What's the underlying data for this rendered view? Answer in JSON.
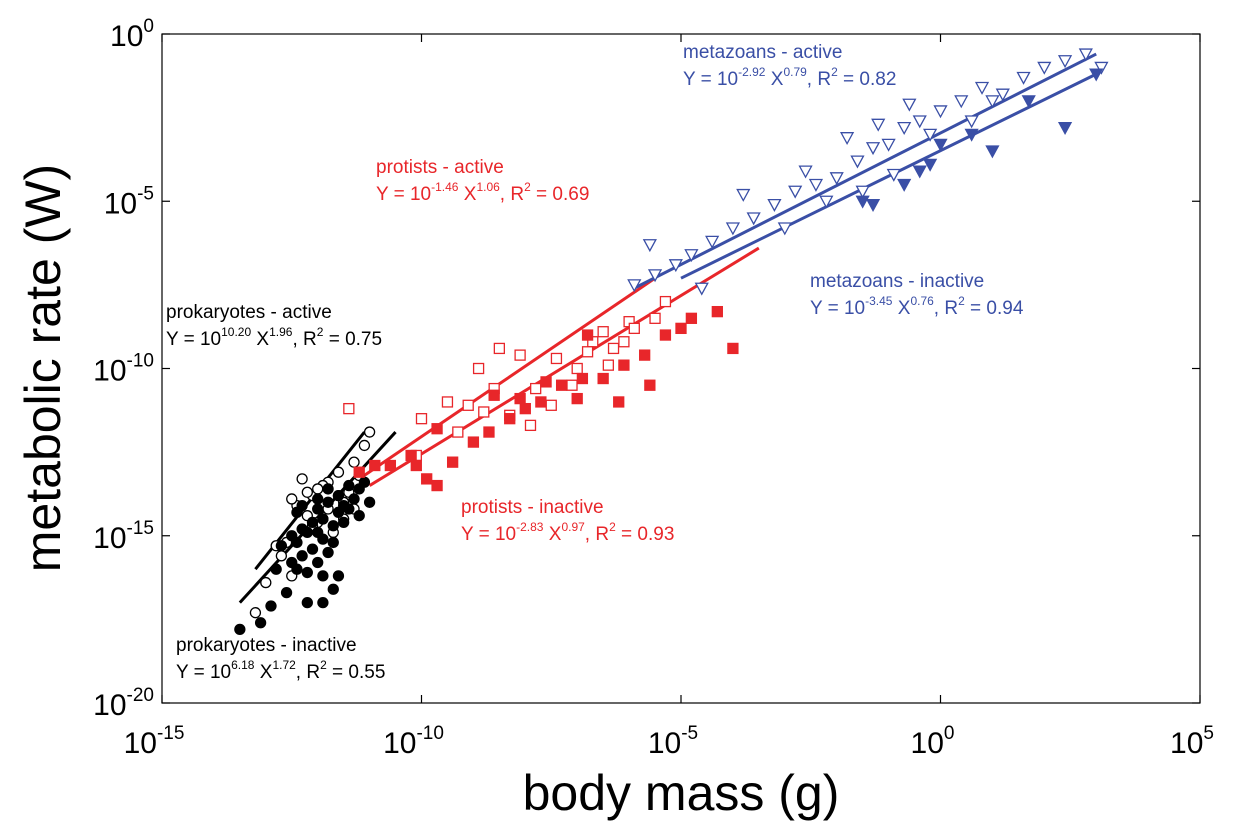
{
  "chart_data": {
    "type": "scatter",
    "title": "",
    "xlabel": "body mass (g)",
    "ylabel": "metabolic rate (W)",
    "x_scale": "log",
    "y_scale": "log",
    "x_exp_range": [
      -15,
      5
    ],
    "y_exp_range": [
      -20,
      0
    ],
    "x_tick_exponents": [
      "-15",
      "-10",
      "-5",
      "0",
      "5"
    ],
    "y_tick_exponents": [
      "0",
      "-5",
      "-10",
      "-15",
      "-20"
    ],
    "tick_base": "10",
    "grid": false,
    "colors": {
      "prokaryotes": "#000000",
      "protists": "#e8262a",
      "metazoans": "#3a4fa6"
    },
    "annotations": [
      {
        "id": "metazoans-active",
        "group": "metazoans",
        "label": "metazoans - active",
        "eq_y": "Y = 10",
        "coef_exp": "-2.92",
        "eq_x": " X",
        "slope_exp": "0.79",
        "eq_r": ", R",
        "r_exp": "2",
        "eq_rval": " = 0.82"
      },
      {
        "id": "metazoans-inactive",
        "group": "metazoans",
        "label": "metazoans - inactive",
        "eq_y": "Y = 10",
        "coef_exp": "-3.45",
        "eq_x": " X",
        "slope_exp": "0.76",
        "eq_r": ", R",
        "r_exp": "2",
        "eq_rval": " = 0.94"
      },
      {
        "id": "protists-active",
        "group": "protists",
        "label": "protists - active",
        "eq_y": "Y = 10",
        "coef_exp": "-1.46",
        "eq_x": " X",
        "slope_exp": "1.06",
        "eq_r": ", R",
        "r_exp": "2",
        "eq_rval": " = 0.69"
      },
      {
        "id": "protists-inactive",
        "group": "protists",
        "label": "protists - inactive",
        "eq_y": "Y = 10",
        "coef_exp": "-2.83",
        "eq_x": " X",
        "slope_exp": "0.97",
        "eq_r": ", R",
        "r_exp": "2",
        "eq_rval": " = 0.93"
      },
      {
        "id": "prokaryotes-active",
        "group": "prokaryotes",
        "label": "prokaryotes - active",
        "eq_y": "Y = 10",
        "coef_exp": "10.20",
        "eq_x": " X",
        "slope_exp": "1.96",
        "eq_r": ", R",
        "r_exp": "2",
        "eq_rval": " = 0.75"
      },
      {
        "id": "prokaryotes-inactive",
        "group": "prokaryotes",
        "label": "prokaryotes - inactive",
        "eq_y": "Y = 10",
        "coef_exp": "6.18",
        "eq_x": " X",
        "slope_exp": "1.72",
        "eq_r": ", R",
        "r_exp": "2",
        "eq_rval": " = 0.55"
      }
    ],
    "fit_lines": [
      {
        "group": "prokaryotes",
        "state": "active",
        "log_x": [
          -13.2,
          -11.1
        ],
        "log_y": [
          -16.0,
          -11.9
        ]
      },
      {
        "group": "prokaryotes",
        "state": "inactive",
        "log_x": [
          -13.5,
          -10.5
        ],
        "log_y": [
          -17.0,
          -11.9
        ]
      },
      {
        "group": "protists",
        "state": "active",
        "log_x": [
          -11.2,
          -5.5
        ],
        "log_y": [
          -13.3,
          -7.3
        ]
      },
      {
        "group": "protists",
        "state": "inactive",
        "log_x": [
          -11.0,
          -3.5
        ],
        "log_y": [
          -13.5,
          -6.4
        ]
      },
      {
        "group": "metazoans",
        "state": "active",
        "log_x": [
          -5.9,
          3.0
        ],
        "log_y": [
          -7.6,
          -0.6
        ]
      },
      {
        "group": "metazoans",
        "state": "inactive",
        "log_x": [
          -5.0,
          3.0
        ],
        "log_y": [
          -7.3,
          -1.2
        ]
      }
    ],
    "series": [
      {
        "group": "prokaryotes",
        "state": "active",
        "marker": "circle",
        "filled": false,
        "points": [
          [
            -12.0,
            -14.6
          ],
          [
            -11.8,
            -14.2
          ],
          [
            -11.7,
            -14.9
          ],
          [
            -11.6,
            -13.8
          ],
          [
            -11.5,
            -14.5
          ],
          [
            -11.5,
            -14.0
          ],
          [
            -11.4,
            -13.7
          ],
          [
            -11.3,
            -14.2
          ],
          [
            -11.2,
            -13.2
          ],
          [
            -11.3,
            -12.8
          ],
          [
            -11.1,
            -12.3
          ],
          [
            -11.0,
            -11.9
          ],
          [
            -11.8,
            -13.4
          ],
          [
            -11.9,
            -13.5
          ],
          [
            -12.1,
            -13.8
          ],
          [
            -12.2,
            -14.4
          ],
          [
            -12.4,
            -14.1
          ],
          [
            -12.6,
            -15.2
          ],
          [
            -12.7,
            -15.6
          ],
          [
            -12.8,
            -15.3
          ],
          [
            -13.0,
            -16.4
          ],
          [
            -13.2,
            -17.3
          ],
          [
            -12.3,
            -13.3
          ],
          [
            -12.5,
            -13.9
          ],
          [
            -12.0,
            -13.6
          ],
          [
            -11.6,
            -13.1
          ],
          [
            -12.2,
            -13.7
          ],
          [
            -11.9,
            -14.5
          ],
          [
            -12.5,
            -16.2
          ],
          [
            -12.1,
            -14.7
          ]
        ]
      },
      {
        "group": "prokaryotes",
        "state": "inactive",
        "marker": "circle",
        "filled": true,
        "points": [
          [
            -13.5,
            -17.8
          ],
          [
            -13.1,
            -17.6
          ],
          [
            -12.9,
            -17.1
          ],
          [
            -12.8,
            -16.0
          ],
          [
            -12.6,
            -16.7
          ],
          [
            -12.7,
            -15.3
          ],
          [
            -12.5,
            -15.8
          ],
          [
            -12.4,
            -15.2
          ],
          [
            -12.4,
            -14.3
          ],
          [
            -12.3,
            -15.6
          ],
          [
            -12.3,
            -14.8
          ],
          [
            -12.2,
            -16.1
          ],
          [
            -12.2,
            -14.9
          ],
          [
            -12.1,
            -15.4
          ],
          [
            -12.1,
            -14.6
          ],
          [
            -12.0,
            -15.8
          ],
          [
            -12.0,
            -14.9
          ],
          [
            -12.0,
            -14.2
          ],
          [
            -11.9,
            -15.1
          ],
          [
            -11.9,
            -14.5
          ],
          [
            -11.8,
            -15.5
          ],
          [
            -11.8,
            -14.0
          ],
          [
            -11.7,
            -14.7
          ],
          [
            -11.7,
            -15.2
          ],
          [
            -11.6,
            -14.3
          ],
          [
            -11.6,
            -13.8
          ],
          [
            -11.5,
            -14.6
          ],
          [
            -11.5,
            -14.1
          ],
          [
            -11.4,
            -13.5
          ],
          [
            -11.4,
            -14.2
          ],
          [
            -11.3,
            -13.9
          ],
          [
            -11.2,
            -14.4
          ],
          [
            -11.2,
            -13.6
          ],
          [
            -11.1,
            -13.4
          ],
          [
            -11.0,
            -14.0
          ],
          [
            -11.6,
            -16.2
          ],
          [
            -11.9,
            -17.0
          ],
          [
            -12.2,
            -17.0
          ],
          [
            -11.7,
            -16.6
          ],
          [
            -12.5,
            -15.0
          ],
          [
            -12.0,
            -13.9
          ],
          [
            -11.8,
            -13.6
          ],
          [
            -12.3,
            -14.1
          ],
          [
            -11.9,
            -16.2
          ],
          [
            -12.4,
            -16.0
          ]
        ]
      },
      {
        "group": "protists",
        "state": "active",
        "marker": "square",
        "filled": false,
        "points": [
          [
            -11.4,
            -11.2
          ],
          [
            -10.0,
            -11.5
          ],
          [
            -9.5,
            -11.0
          ],
          [
            -9.1,
            -11.1
          ],
          [
            -8.6,
            -10.6
          ],
          [
            -8.3,
            -11.4
          ],
          [
            -8.1,
            -9.6
          ],
          [
            -7.8,
            -10.6
          ],
          [
            -7.4,
            -9.7
          ],
          [
            -7.0,
            -10.0
          ],
          [
            -6.7,
            -9.2
          ],
          [
            -6.4,
            -9.9
          ],
          [
            -6.0,
            -8.6
          ],
          [
            -5.5,
            -8.5
          ],
          [
            -6.5,
            -8.9
          ],
          [
            -8.5,
            -9.4
          ],
          [
            -8.9,
            -10.0
          ],
          [
            -7.1,
            -10.5
          ],
          [
            -5.9,
            -8.8
          ],
          [
            -6.8,
            -9.5
          ],
          [
            -5.3,
            -8.0
          ],
          [
            -7.9,
            -11.7
          ],
          [
            -6.3,
            -9.4
          ],
          [
            -9.3,
            -11.9
          ],
          [
            -7.5,
            -11.1
          ],
          [
            -10.1,
            -12.6
          ],
          [
            -6.1,
            -9.2
          ],
          [
            -8.8,
            -11.3
          ]
        ]
      },
      {
        "group": "protists",
        "state": "inactive",
        "marker": "square",
        "filled": true,
        "points": [
          [
            -11.2,
            -13.1
          ],
          [
            -10.9,
            -12.9
          ],
          [
            -10.6,
            -12.9
          ],
          [
            -10.2,
            -12.6
          ],
          [
            -10.1,
            -12.9
          ],
          [
            -9.7,
            -13.5
          ],
          [
            -9.4,
            -12.8
          ],
          [
            -9.0,
            -12.2
          ],
          [
            -8.7,
            -11.9
          ],
          [
            -8.3,
            -11.5
          ],
          [
            -8.0,
            -11.2
          ],
          [
            -7.7,
            -11.0
          ],
          [
            -7.3,
            -10.5
          ],
          [
            -6.9,
            -10.3
          ],
          [
            -6.5,
            -10.3
          ],
          [
            -6.1,
            -9.9
          ],
          [
            -5.7,
            -9.6
          ],
          [
            -5.3,
            -9.0
          ],
          [
            -4.8,
            -8.5
          ],
          [
            -4.0,
            -9.4
          ],
          [
            -4.3,
            -8.3
          ],
          [
            -5.0,
            -8.8
          ],
          [
            -6.8,
            -9.0
          ],
          [
            -7.0,
            -10.9
          ],
          [
            -5.6,
            -10.5
          ],
          [
            -9.9,
            -13.3
          ],
          [
            -8.6,
            -10.8
          ],
          [
            -7.6,
            -10.4
          ],
          [
            -6.2,
            -11.0
          ],
          [
            -9.7,
            -11.8
          ],
          [
            -8.1,
            -10.9
          ]
        ]
      },
      {
        "group": "metazoans",
        "state": "active",
        "marker": "triangle-down",
        "filled": false,
        "points": [
          [
            -5.9,
            -7.5
          ],
          [
            -5.5,
            -7.2
          ],
          [
            -5.1,
            -6.9
          ],
          [
            -4.8,
            -6.6
          ],
          [
            -4.4,
            -6.2
          ],
          [
            -4.0,
            -5.8
          ],
          [
            -3.6,
            -5.5
          ],
          [
            -3.2,
            -5.1
          ],
          [
            -2.8,
            -4.7
          ],
          [
            -2.4,
            -4.5
          ],
          [
            -2.0,
            -4.3
          ],
          [
            -1.6,
            -3.8
          ],
          [
            -1.3,
            -3.4
          ],
          [
            -1.0,
            -3.3
          ],
          [
            -0.7,
            -2.8
          ],
          [
            -0.4,
            -2.6
          ],
          [
            0.0,
            -2.3
          ],
          [
            0.4,
            -2.0
          ],
          [
            0.8,
            -1.6
          ],
          [
            1.2,
            -1.8
          ],
          [
            1.6,
            -1.3
          ],
          [
            2.0,
            -1.0
          ],
          [
            2.4,
            -0.8
          ],
          [
            2.8,
            -0.6
          ],
          [
            3.1,
            -1.0
          ],
          [
            -3.8,
            -4.8
          ],
          [
            -2.6,
            -4.1
          ],
          [
            -1.8,
            -3.1
          ],
          [
            -1.2,
            -2.7
          ],
          [
            -0.9,
            -4.2
          ],
          [
            -0.6,
            -2.1
          ],
          [
            -0.2,
            -3.0
          ],
          [
            0.6,
            -2.6
          ],
          [
            1.0,
            -2.0
          ],
          [
            -3.0,
            -5.8
          ],
          [
            -4.6,
            -7.6
          ],
          [
            -5.6,
            -6.3
          ],
          [
            -2.2,
            -5.0
          ],
          [
            -1.5,
            -4.7
          ]
        ]
      },
      {
        "group": "metazoans",
        "state": "inactive",
        "marker": "triangle-down",
        "filled": true,
        "points": [
          [
            -1.5,
            -5.0
          ],
          [
            -1.3,
            -5.1
          ],
          [
            -0.7,
            -4.5
          ],
          [
            -0.4,
            -4.1
          ],
          [
            -0.2,
            -3.9
          ],
          [
            0.0,
            -3.3
          ],
          [
            0.6,
            -3.0
          ],
          [
            1.0,
            -3.5
          ],
          [
            1.7,
            -2.0
          ],
          [
            2.4,
            -2.8
          ],
          [
            3.0,
            -1.2
          ]
        ]
      }
    ]
  }
}
